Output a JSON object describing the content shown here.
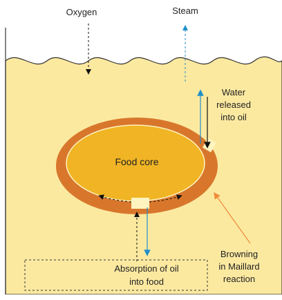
{
  "labels": {
    "oxygen": "Oxygen",
    "steam": "Steam",
    "water": [
      "Water",
      "released",
      "into oil"
    ],
    "core": "Food core",
    "browning": [
      "Browning",
      "in Maillard",
      "reaction"
    ],
    "absorption": [
      "Absorption of oil",
      "into food"
    ]
  }
}
